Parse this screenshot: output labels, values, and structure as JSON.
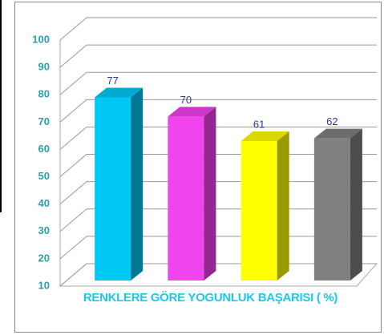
{
  "chart_data": {
    "type": "bar3d",
    "categories": [
      null,
      null,
      null,
      null
    ],
    "values": [
      77,
      70,
      61,
      62
    ],
    "colors": [
      "#00c8f5",
      "#f044ee",
      "#ffff00",
      "#808080"
    ],
    "x_label": "RENKLERE GÖRE YOGUNLUK BAŞARISI ( %)",
    "ylim": [
      10,
      100
    ],
    "yticks": [
      10,
      20,
      30,
      40,
      50,
      60,
      70,
      80,
      90,
      100
    ],
    "grid": true
  }
}
